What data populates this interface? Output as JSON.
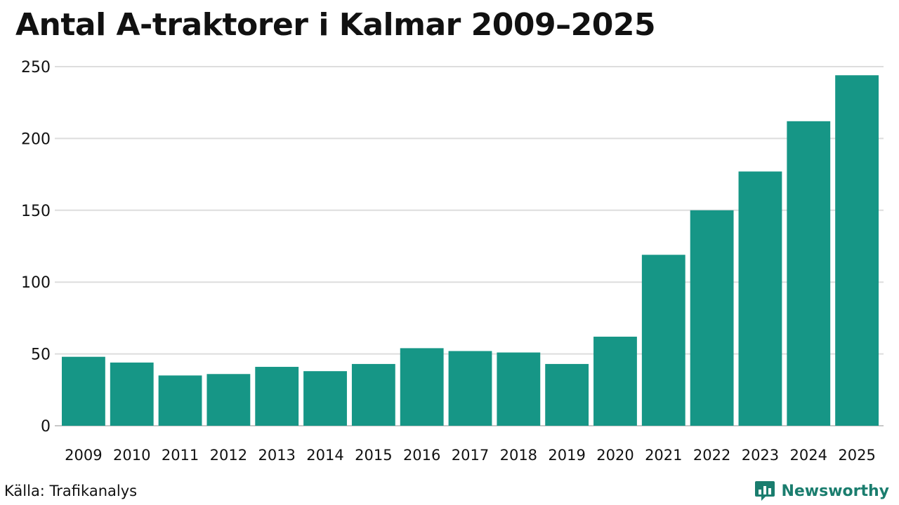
{
  "title": "Antal A-traktorer i Kalmar 2009–2025",
  "source": "Källa: Trafikanalys",
  "brand": {
    "name": "Newsworthy",
    "icon": "newsworthy-logo-icon",
    "color": "#1a7d6e"
  },
  "colors": {
    "bar": "#169686",
    "grid": "#dddddd",
    "axis": "#c8c8c8"
  },
  "chart_data": {
    "type": "bar",
    "categories": [
      "2009",
      "2010",
      "2011",
      "2012",
      "2013",
      "2014",
      "2015",
      "2016",
      "2017",
      "2018",
      "2019",
      "2020",
      "2021",
      "2022",
      "2023",
      "2024",
      "2025"
    ],
    "values": [
      48,
      44,
      35,
      36,
      41,
      38,
      43,
      54,
      52,
      51,
      43,
      62,
      119,
      150,
      177,
      212,
      244
    ],
    "ylim": [
      0,
      250
    ],
    "yticks": [
      0,
      50,
      100,
      150,
      200,
      250
    ],
    "grid": true,
    "xlabel": "",
    "ylabel": ""
  }
}
